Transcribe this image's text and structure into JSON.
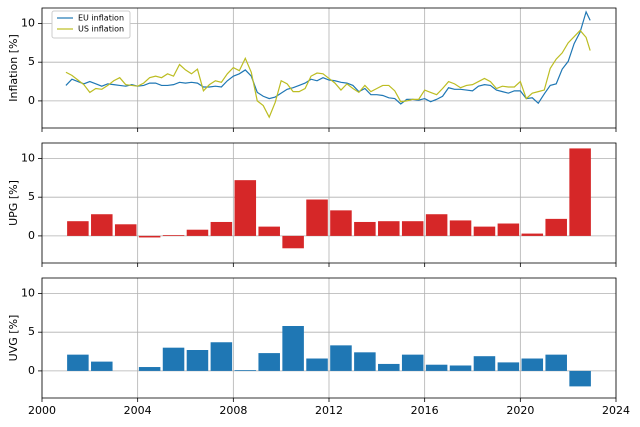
{
  "chart_data": [
    {
      "type": "line",
      "ylabel": "Inflation [%]",
      "legend": "upper left",
      "grid": true,
      "xlim": [
        2000,
        2024
      ],
      "xticks": [
        2000,
        2004,
        2008,
        2012,
        2016,
        2020,
        2024
      ],
      "ylim": [
        -3.5,
        12
      ],
      "yticks": [
        0,
        5,
        10
      ],
      "x": [
        2001,
        2001.25,
        2001.5,
        2001.75,
        2002,
        2002.25,
        2002.5,
        2002.75,
        2003,
        2003.25,
        2003.5,
        2003.75,
        2004,
        2004.25,
        2004.5,
        2004.75,
        2005,
        2005.25,
        2005.5,
        2005.75,
        2006,
        2006.25,
        2006.5,
        2006.75,
        2007,
        2007.25,
        2007.5,
        2007.75,
        2008,
        2008.25,
        2008.5,
        2008.75,
        2009,
        2009.25,
        2009.5,
        2009.75,
        2010,
        2010.25,
        2010.5,
        2010.75,
        2011,
        2011.25,
        2011.5,
        2011.75,
        2012,
        2012.25,
        2012.5,
        2012.75,
        2013,
        2013.25,
        2013.5,
        2013.75,
        2014,
        2014.25,
        2014.5,
        2014.75,
        2015,
        2015.25,
        2015.5,
        2015.75,
        2016,
        2016.25,
        2016.5,
        2016.75,
        2017,
        2017.25,
        2017.5,
        2017.75,
        2018,
        2018.25,
        2018.5,
        2018.75,
        2019,
        2019.25,
        2019.5,
        2019.75,
        2020,
        2020.25,
        2020.5,
        2020.75,
        2021,
        2021.25,
        2021.5,
        2021.75,
        2022,
        2022.25,
        2022.5,
        2022.75,
        2022.92
      ],
      "series": [
        {
          "name": "EU inflation",
          "color": "#1f77b4",
          "values": [
            2.0,
            2.8,
            2.5,
            2.2,
            2.5,
            2.2,
            1.9,
            2.2,
            2.1,
            2.0,
            1.9,
            2.1,
            1.9,
            2.0,
            2.3,
            2.3,
            2.0,
            2.0,
            2.1,
            2.4,
            2.3,
            2.4,
            2.3,
            1.8,
            1.8,
            1.9,
            1.8,
            2.6,
            3.2,
            3.5,
            4.0,
            3.2,
            1.1,
            0.6,
            0.3,
            0.5,
            1.0,
            1.5,
            1.7,
            2.0,
            2.3,
            2.8,
            2.6,
            3.0,
            2.7,
            2.6,
            2.4,
            2.3,
            2.0,
            1.2,
            1.6,
            0.8,
            0.8,
            0.7,
            0.4,
            0.3,
            -0.4,
            0.2,
            0.2,
            0.1,
            0.3,
            -0.1,
            0.2,
            0.6,
            1.7,
            1.5,
            1.5,
            1.4,
            1.3,
            1.9,
            2.1,
            2.0,
            1.4,
            1.2,
            1.0,
            1.3,
            1.3,
            0.3,
            0.4,
            -0.3,
            0.9,
            2.0,
            2.2,
            4.1,
            5.1,
            7.4,
            8.9,
            11.5,
            10.4
          ]
        },
        {
          "name": "US inflation",
          "color": "#bcbd22",
          "values": [
            3.7,
            3.3,
            2.7,
            2.1,
            1.1,
            1.6,
            1.5,
            2.0,
            2.6,
            3.0,
            2.1,
            2.0,
            1.9,
            2.3,
            3.0,
            3.2,
            3.0,
            3.5,
            3.2,
            4.7,
            4.0,
            3.5,
            4.1,
            1.3,
            2.1,
            2.6,
            2.4,
            3.5,
            4.3,
            3.9,
            5.5,
            3.7,
            0.0,
            -0.6,
            -2.1,
            -0.2,
            2.6,
            2.2,
            1.2,
            1.2,
            1.6,
            3.2,
            3.6,
            3.5,
            2.9,
            2.3,
            1.4,
            2.2,
            1.6,
            1.1,
            2.0,
            1.2,
            1.6,
            2.0,
            2.0,
            1.3,
            -0.1,
            0.0,
            0.2,
            0.2,
            1.4,
            1.1,
            0.8,
            1.6,
            2.5,
            2.2,
            1.7,
            2.0,
            2.1,
            2.5,
            2.9,
            2.5,
            1.6,
            1.9,
            1.8,
            1.8,
            2.5,
            0.3,
            1.0,
            1.2,
            1.4,
            4.2,
            5.4,
            6.2,
            7.5,
            8.3,
            9.1,
            8.2,
            6.5
          ]
        }
      ]
    },
    {
      "type": "bar",
      "ylabel": "UPG [%]",
      "grid": true,
      "color": "#d62728",
      "xlim": [
        2000,
        2024
      ],
      "xticks": [
        2000,
        2004,
        2008,
        2012,
        2016,
        2020,
        2024
      ],
      "ylim": [
        -3.5,
        12
      ],
      "yticks": [
        0,
        5,
        10
      ],
      "x": [
        2001.5,
        2002.5,
        2003.5,
        2004.5,
        2005.5,
        2006.5,
        2007.5,
        2008.5,
        2009.5,
        2010.5,
        2011.5,
        2012.5,
        2013.5,
        2014.5,
        2015.5,
        2016.5,
        2017.5,
        2018.5,
        2019.5,
        2020.5,
        2021.5,
        2022.5
      ],
      "values": [
        1.9,
        2.8,
        1.5,
        -0.2,
        0.1,
        0.8,
        1.8,
        7.2,
        1.2,
        -1.6,
        4.7,
        3.3,
        1.8,
        1.9,
        1.9,
        2.8,
        2.0,
        1.2,
        1.6,
        0.3,
        2.2,
        11.3
      ]
    },
    {
      "type": "bar",
      "ylabel": "UVG [%]",
      "grid": true,
      "color": "#1f77b4",
      "xlim": [
        2000,
        2024
      ],
      "xticks": [
        2000,
        2004,
        2008,
        2012,
        2016,
        2020,
        2024
      ],
      "ylim": [
        -3.5,
        12
      ],
      "yticks": [
        0,
        5,
        10
      ],
      "x": [
        2001.5,
        2002.5,
        2003.5,
        2004.5,
        2005.5,
        2006.5,
        2007.5,
        2008.5,
        2009.5,
        2010.5,
        2011.5,
        2012.5,
        2013.5,
        2014.5,
        2015.5,
        2016.5,
        2017.5,
        2018.5,
        2019.5,
        2020.5,
        2021.5,
        2022.5
      ],
      "values": [
        2.1,
        1.2,
        null,
        0.5,
        3.0,
        2.7,
        3.7,
        0.1,
        2.3,
        5.8,
        1.6,
        3.3,
        2.4,
        0.9,
        2.1,
        0.8,
        0.7,
        1.9,
        1.1,
        1.6,
        2.1,
        -2.0
      ]
    }
  ]
}
